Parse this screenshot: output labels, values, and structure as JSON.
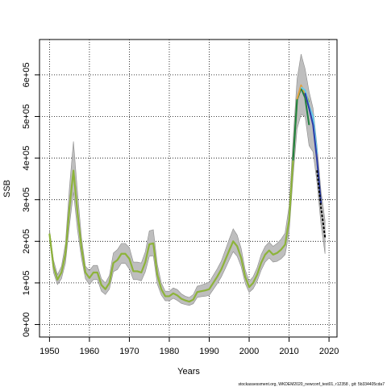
{
  "chart_data": {
    "type": "line",
    "title": "",
    "xlabel": "Years",
    "ylabel": "SSB",
    "caption": "stockassessment.org, WKDEM2020_newconf_test01, r12358 , git: 5b334405cda7",
    "xlim": [
      1947.5,
      2022
    ],
    "ylim": [
      -30000,
      685000
    ],
    "x_ticks": [
      1950,
      1960,
      1970,
      1980,
      1990,
      2000,
      2010,
      2020
    ],
    "x_tick_labels": [
      "1950",
      "1960",
      "1970",
      "1980",
      "1990",
      "2000",
      "2010",
      "2020"
    ],
    "y_ticks": [
      0,
      100000,
      200000,
      300000,
      400000,
      500000,
      600000
    ],
    "y_tick_labels": [
      "0e+00",
      "1e+05",
      "2e+05",
      "3e+05",
      "4e+05",
      "5e+05",
      "6e+05"
    ],
    "grid": true,
    "grid_style": "dotted",
    "band_color": "#bebebe",
    "band_edge_color": "#8c8c8c",
    "series": [
      {
        "color": "#8db33a",
        "x": [
          1950,
          1951,
          1952,
          1953,
          1954,
          1955,
          1956,
          1957,
          1958,
          1959,
          1960,
          1961,
          1962,
          1963,
          1964,
          1965,
          1966,
          1967,
          1968,
          1969,
          1970,
          1971,
          1972,
          1973,
          1974,
          1975,
          1976,
          1977,
          1978,
          1979,
          1980,
          1981,
          1982,
          1983,
          1984,
          1985,
          1986,
          1987,
          1988,
          1989,
          1990,
          1991,
          1992,
          1993,
          1994,
          1995,
          1996,
          1997,
          1998,
          1999,
          2000,
          2001,
          2002,
          2003,
          2004,
          2005,
          2006,
          2007,
          2008,
          2009,
          2010,
          2011,
          2012,
          2013,
          2014,
          2015
        ],
        "y": [
          218000,
          140000,
          108000,
          125000,
          170000,
          280000,
          370000,
          270000,
          185000,
          125000,
          112000,
          125000,
          125000,
          95000,
          85000,
          100000,
          148000,
          155000,
          170000,
          170000,
          158000,
          128000,
          128000,
          125000,
          150000,
          193000,
          195000,
          120000,
          85000,
          68000,
          68000,
          75000,
          70000,
          62000,
          58000,
          55000,
          60000,
          78000,
          80000,
          82000,
          85000,
          100000,
          115000,
          132000,
          155000,
          178000,
          200000,
          188000,
          160000,
          115000,
          90000,
          100000,
          120000,
          148000,
          168000,
          178000,
          168000,
          172000,
          180000,
          192000,
          250000,
          395000,
          540000,
          570000,
          556000,
          535000
        ]
      },
      {
        "color": "#1f7f3f",
        "x": [
          2011,
          2012,
          2013,
          2014,
          2015
        ],
        "y": [
          395000,
          540000,
          568000,
          545000,
          480000
        ]
      },
      {
        "color": "#e0a040",
        "x": [
          2012,
          2013,
          2014,
          2015
        ],
        "y": [
          542000,
          575000,
          555000,
          520000
        ]
      },
      {
        "color": "#66ccee",
        "x": [
          2013,
          2014,
          2015,
          2016,
          2017
        ],
        "y": [
          570000,
          563000,
          525000,
          500000,
          410000
        ]
      },
      {
        "color": "#2b3ca8",
        "x": [
          2014,
          2015,
          2016,
          2017,
          2018
        ],
        "y": [
          556000,
          520000,
          480000,
          395000,
          290000
        ]
      },
      {
        "color": "#000000",
        "dashed": true,
        "x": [
          2017,
          2018,
          2019
        ],
        "y": [
          370000,
          280000,
          210000
        ]
      }
    ],
    "band": {
      "x": [
        1950,
        1951,
        1952,
        1953,
        1954,
        1955,
        1956,
        1957,
        1958,
        1959,
        1960,
        1961,
        1962,
        1963,
        1964,
        1965,
        1966,
        1967,
        1968,
        1969,
        1970,
        1971,
        1972,
        1973,
        1974,
        1975,
        1976,
        1977,
        1978,
        1979,
        1980,
        1981,
        1982,
        1983,
        1984,
        1985,
        1986,
        1987,
        1988,
        1989,
        1990,
        1991,
        1992,
        1993,
        1994,
        1995,
        1996,
        1997,
        1998,
        1999,
        2000,
        2001,
        2002,
        2003,
        2004,
        2005,
        2006,
        2007,
        2008,
        2009,
        2010,
        2011,
        2012,
        2013,
        2014,
        2015,
        2016,
        2017,
        2018,
        2019
      ],
      "upper": [
        228000,
        155000,
        120000,
        140000,
        195000,
        330000,
        440000,
        320000,
        210000,
        140000,
        130000,
        142000,
        142000,
        110000,
        100000,
        118000,
        172000,
        180000,
        195000,
        195000,
        185000,
        150000,
        150000,
        148000,
        175000,
        225000,
        228000,
        145000,
        100000,
        80000,
        80000,
        88000,
        84000,
        74000,
        68000,
        65000,
        72000,
        92000,
        95000,
        98000,
        102000,
        118000,
        134000,
        152000,
        178000,
        205000,
        230000,
        215000,
        183000,
        132000,
        104000,
        115000,
        137000,
        168000,
        188000,
        198000,
        188000,
        195000,
        205000,
        220000,
        285000,
        445000,
        590000,
        650000,
        615000,
        560000,
        520000,
        430000,
        320000,
        250000
      ],
      "lower": [
        208000,
        125000,
        96000,
        110000,
        148000,
        238000,
        318000,
        228000,
        160000,
        110000,
        96000,
        108000,
        108000,
        80000,
        72000,
        85000,
        127000,
        132000,
        147000,
        147000,
        133000,
        108000,
        108000,
        105000,
        127000,
        164000,
        165000,
        97000,
        71000,
        57000,
        57000,
        63000,
        58000,
        51000,
        48000,
        46000,
        50000,
        65000,
        67000,
        68000,
        70000,
        84000,
        98000,
        114000,
        134000,
        155000,
        175000,
        164000,
        139000,
        99000,
        77000,
        86000,
        104000,
        130000,
        150000,
        160000,
        150000,
        152000,
        158000,
        168000,
        220000,
        355000,
        470000,
        505000,
        500000,
        430000,
        415000,
        340000,
        240000,
        170000
      ]
    }
  }
}
